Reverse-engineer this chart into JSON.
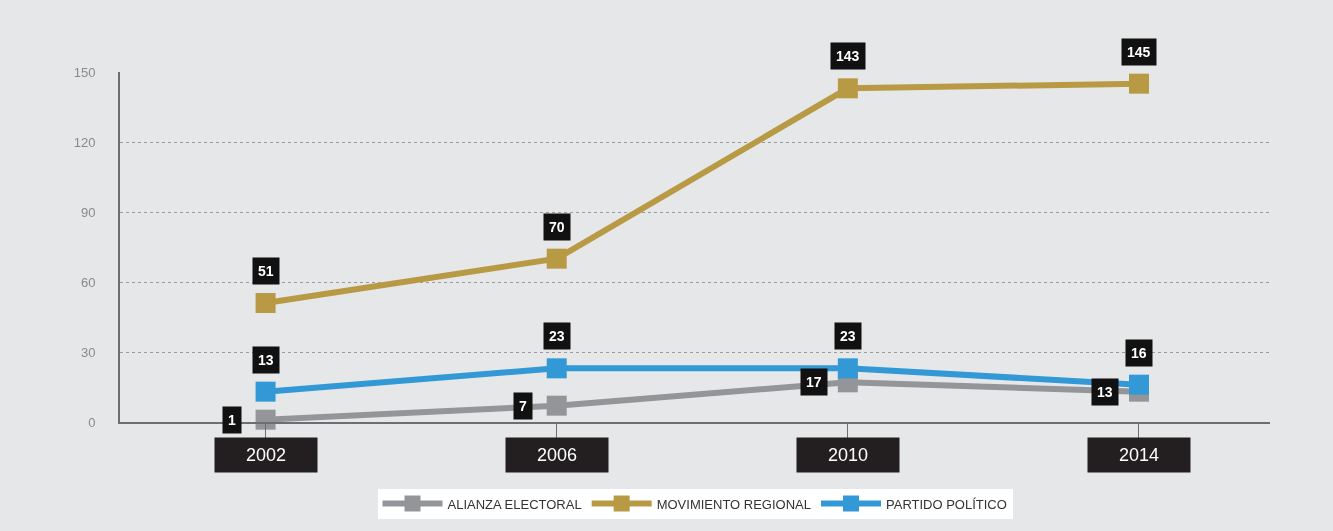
{
  "chart_data": {
    "type": "line",
    "categories": [
      "2002",
      "2006",
      "2010",
      "2014"
    ],
    "series": [
      {
        "name": "ALIANZA ELECTORAL",
        "color": "#939598",
        "values": [
          1,
          7,
          17,
          13
        ]
      },
      {
        "name": "MOVIMIENTO REGIONAL",
        "color": "#b89a45",
        "values": [
          51,
          70,
          143,
          145
        ]
      },
      {
        "name": "PARTIDO POLÍTICO",
        "color": "#3399d6",
        "values": [
          13,
          23,
          23,
          16
        ]
      }
    ],
    "ylim": [
      0,
      150
    ],
    "yticks": [
      0,
      30,
      60,
      90,
      120,
      150
    ],
    "grid": "y",
    "legend": "bottom",
    "marker": "square",
    "line_style": "solid",
    "data_labels": true
  }
}
